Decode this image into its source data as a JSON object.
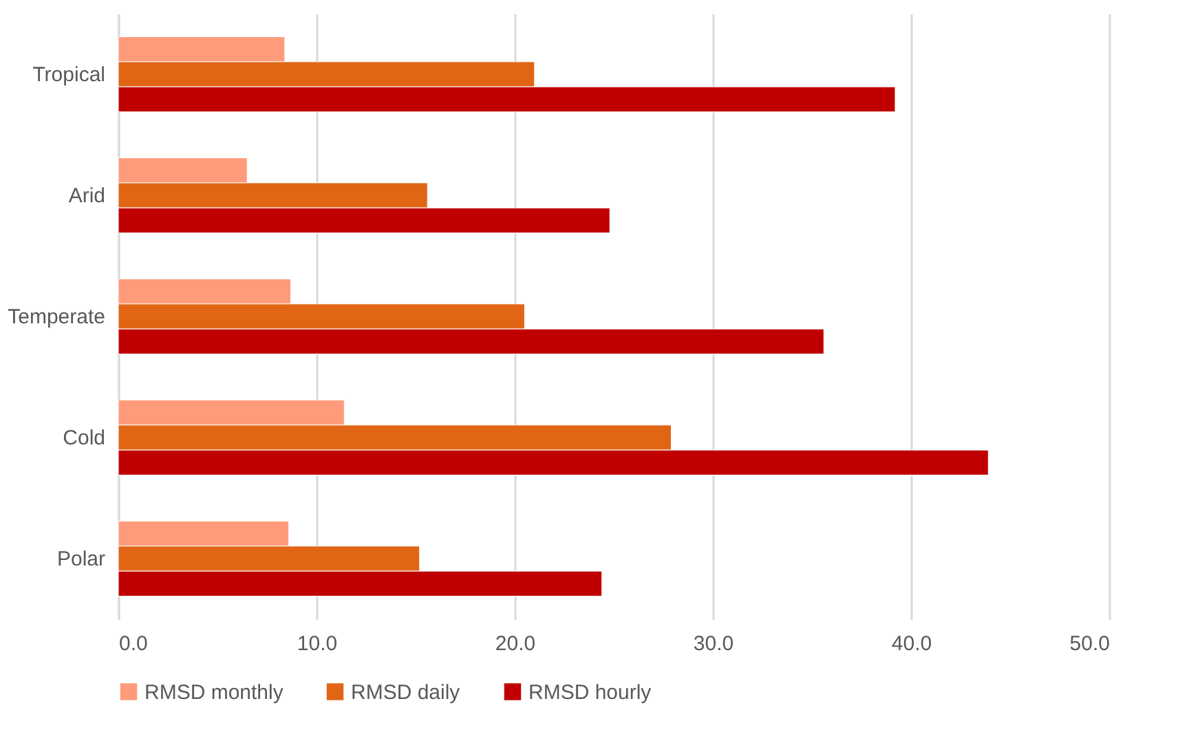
{
  "chart_data": {
    "type": "bar",
    "orientation": "horizontal",
    "categories": [
      "Tropical",
      "Arid",
      "Temperate",
      "Cold",
      "Polar"
    ],
    "series": [
      {
        "name": "RMSD monthly",
        "color": "#ff9b7a",
        "values": [
          8.4,
          6.5,
          8.7,
          11.4,
          8.6
        ]
      },
      {
        "name": "RMSD daily",
        "color": "#e06616",
        "values": [
          21.0,
          15.6,
          20.5,
          27.9,
          15.2
        ]
      },
      {
        "name": "RMSD hourly",
        "color": "#c00000",
        "values": [
          39.2,
          24.8,
          35.6,
          43.9,
          24.4
        ]
      }
    ],
    "xlim": [
      0,
      50
    ],
    "xticks": [
      {
        "value": 0,
        "label": "0.0"
      },
      {
        "value": 10,
        "label": "10.0"
      },
      {
        "value": 20,
        "label": "20.0"
      },
      {
        "value": 30,
        "label": "30.0"
      },
      {
        "value": 40,
        "label": "40.0"
      },
      {
        "value": 50,
        "label": "50.0"
      }
    ],
    "grid": "x",
    "legend": "bottom"
  }
}
